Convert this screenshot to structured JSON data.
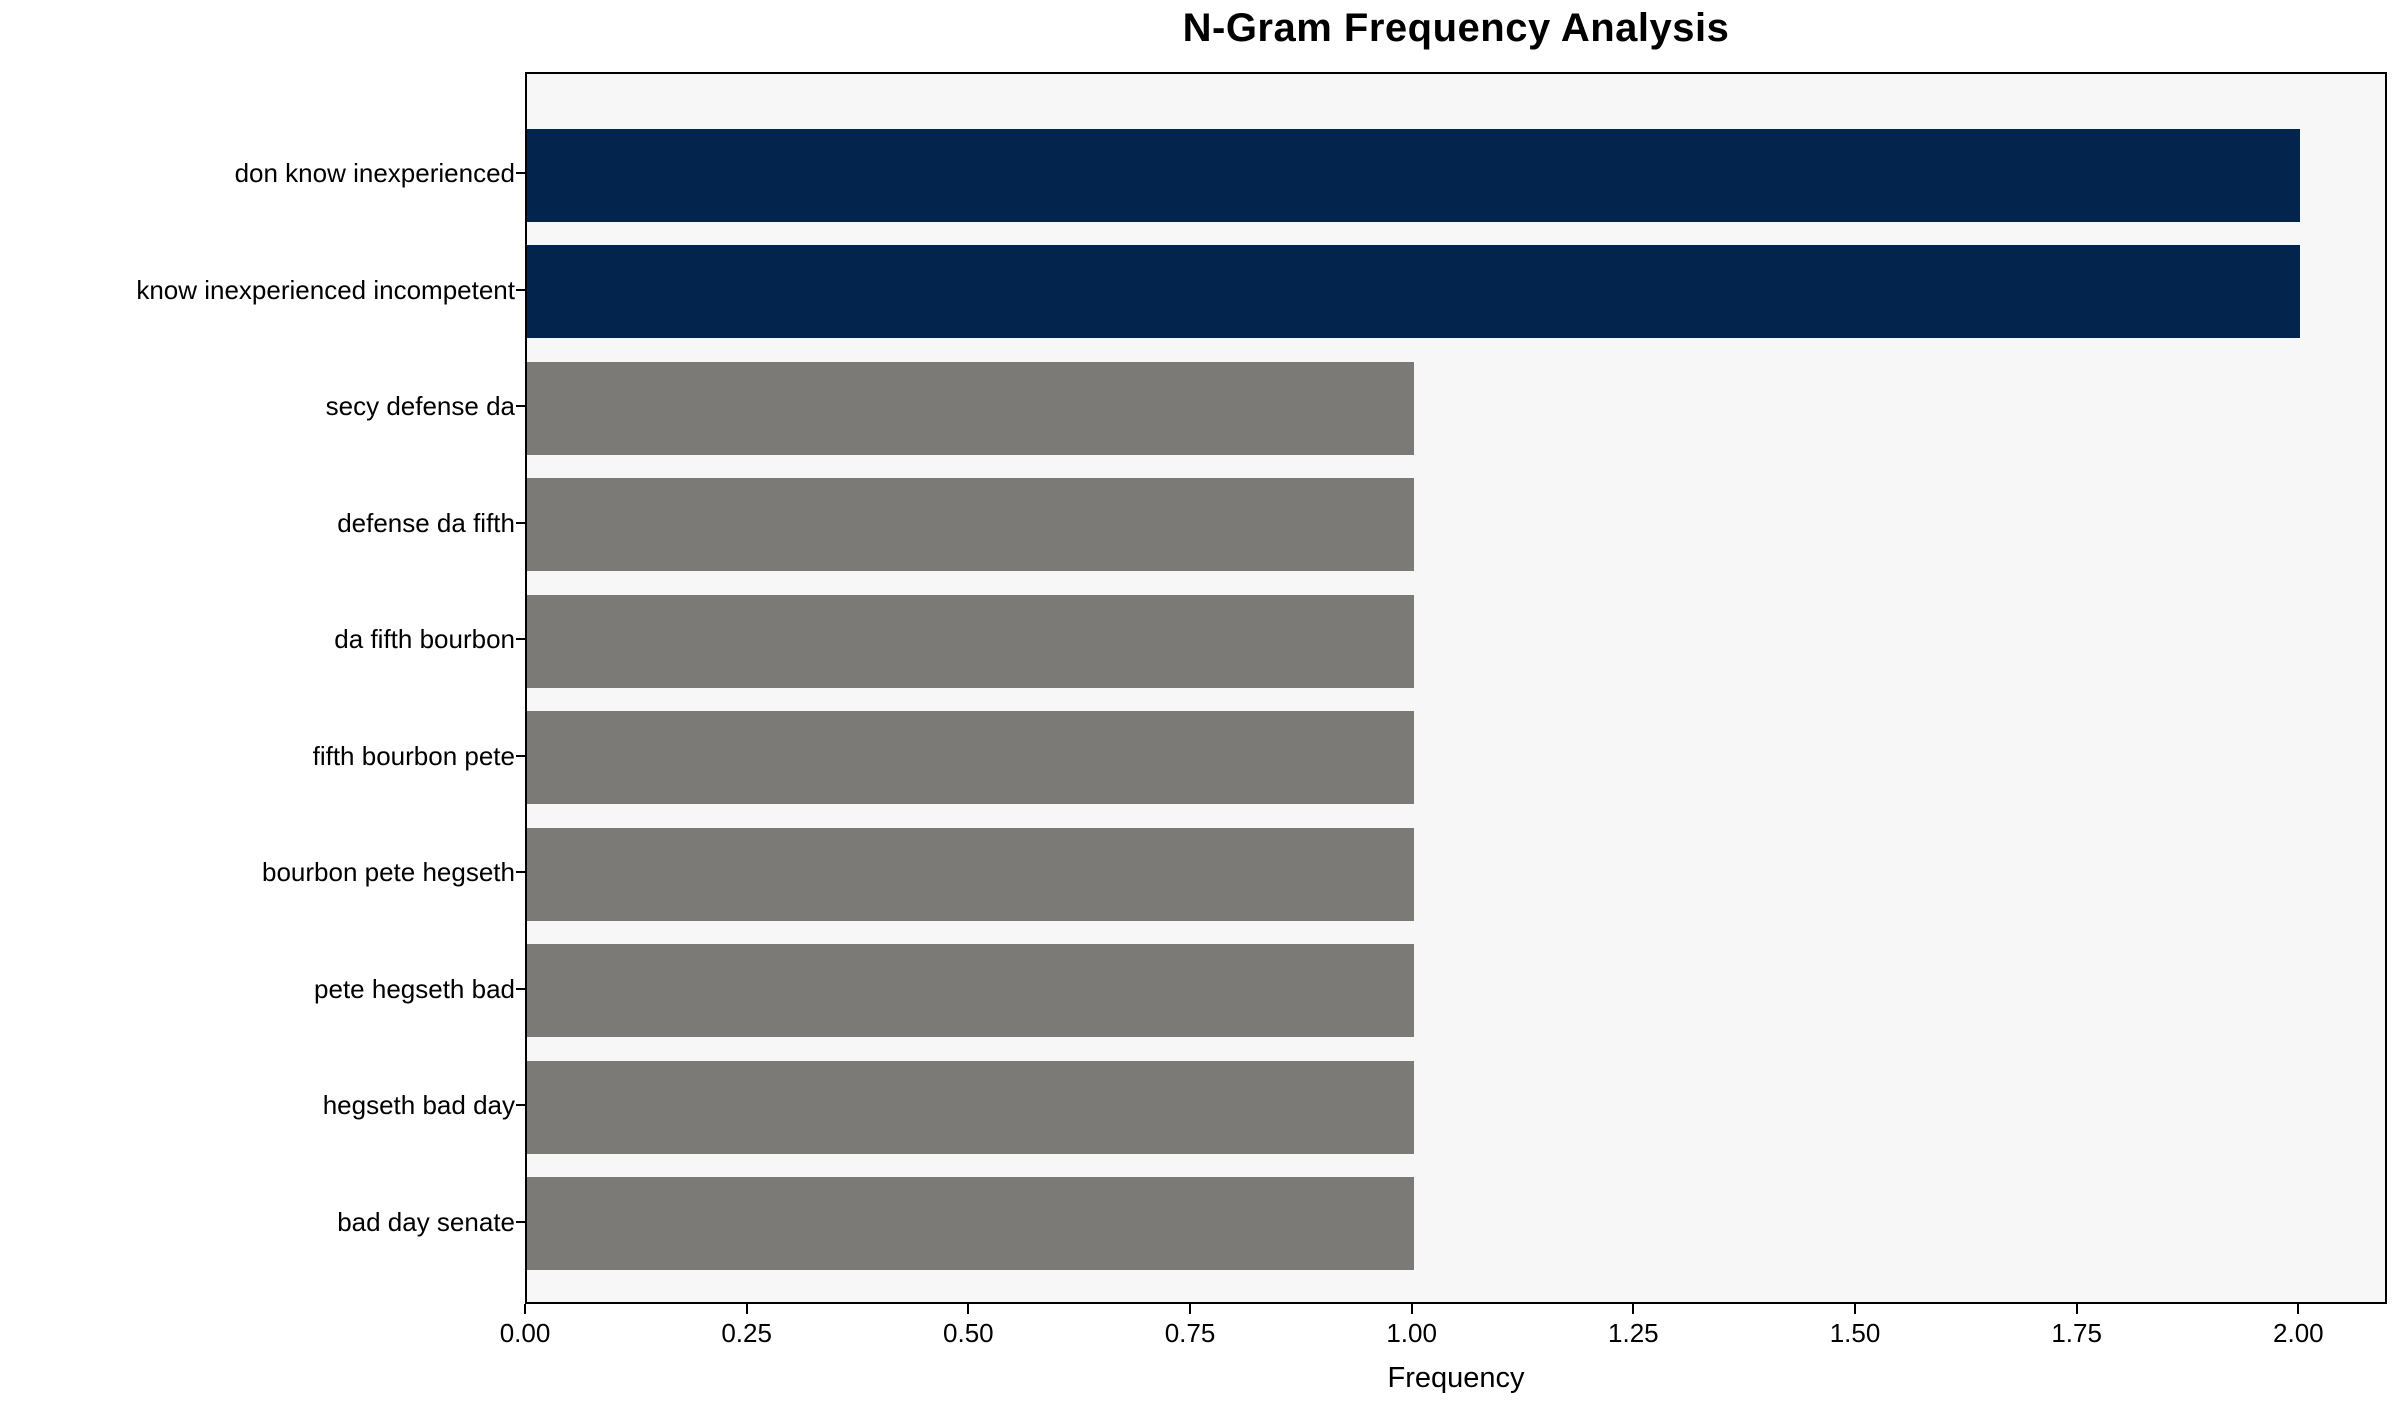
{
  "chart_data": {
    "type": "bar",
    "orientation": "horizontal",
    "title": "N-Gram Frequency Analysis",
    "xlabel": "Frequency",
    "ylabel": "",
    "categories": [
      "don know inexperienced",
      "know inexperienced incompetent",
      "secy defense da",
      "defense da fifth",
      "da fifth bourbon",
      "fifth bourbon pete",
      "bourbon pete hegseth",
      "pete hegseth bad",
      "hegseth bad day",
      "bad day senate"
    ],
    "values": [
      2,
      2,
      1,
      1,
      1,
      1,
      1,
      1,
      1,
      1
    ],
    "bar_colors": [
      "#02244d",
      "#02244d",
      "#7b7a77",
      "#7b7a77",
      "#7b7a77",
      "#7b7a77",
      "#7b7a77",
      "#7b7a77",
      "#7b7a77",
      "#7b7a77"
    ],
    "xlim": [
      0,
      2.1
    ],
    "xtick_values": [
      0,
      0.25,
      0.5,
      0.75,
      1.0,
      1.25,
      1.5,
      1.75,
      2.0
    ],
    "xtick_labels": [
      "0.00",
      "0.25",
      "0.50",
      "0.75",
      "1.00",
      "1.25",
      "1.50",
      "1.75",
      "2.00"
    ],
    "grid": false,
    "legend": null,
    "colors": {
      "highlight_bar": "#02244d",
      "default_bar": "#7b7a77",
      "plot_background": "#f7f7f7",
      "figure_background": "#ffffff",
      "axis": "#000000"
    }
  }
}
